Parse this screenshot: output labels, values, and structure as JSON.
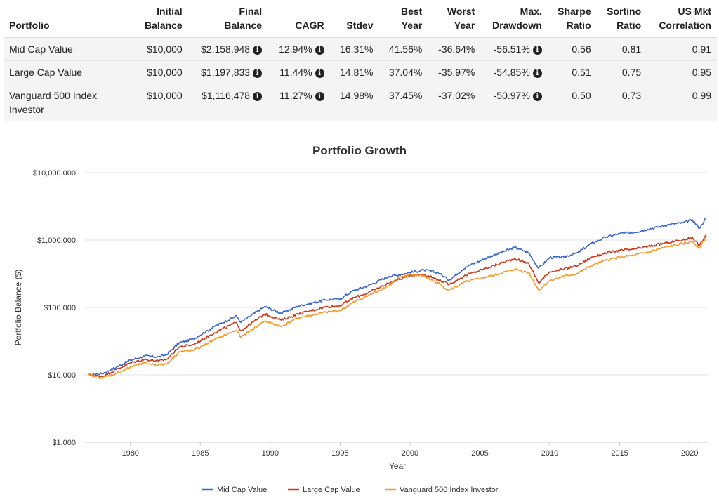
{
  "table": {
    "headers": [
      {
        "line1": "",
        "line2": "Portfolio"
      },
      {
        "line1": "Initial",
        "line2": "Balance"
      },
      {
        "line1": "Final",
        "line2": "Balance"
      },
      {
        "line1": "",
        "line2": "CAGR"
      },
      {
        "line1": "",
        "line2": "Stdev"
      },
      {
        "line1": "Best",
        "line2": "Year"
      },
      {
        "line1": "Worst",
        "line2": "Year"
      },
      {
        "line1": "Max.",
        "line2": "Drawdown"
      },
      {
        "line1": "Sharpe",
        "line2": "Ratio"
      },
      {
        "line1": "Sortino",
        "line2": "Ratio"
      },
      {
        "line1": "US Mkt",
        "line2": "Correlation"
      }
    ],
    "rows": [
      {
        "portfolio": "Mid Cap Value",
        "initial": "$10,000",
        "final": "$2,158,948",
        "cagr": "12.94%",
        "stdev": "16.31%",
        "best": "41.56%",
        "worst": "-36.64%",
        "drawdown": "-56.51%",
        "sharpe": "0.56",
        "sortino": "0.81",
        "corr": "0.91"
      },
      {
        "portfolio": "Large Cap Value",
        "initial": "$10,000",
        "final": "$1,197,833",
        "cagr": "11.44%",
        "stdev": "14.81%",
        "best": "37.04%",
        "worst": "-35.97%",
        "drawdown": "-54.85%",
        "sharpe": "0.51",
        "sortino": "0.75",
        "corr": "0.95"
      },
      {
        "portfolio": "Vanguard 500 Index Investor",
        "initial": "$10,000",
        "final": "$1,116,478",
        "cagr": "11.27%",
        "stdev": "14.98%",
        "best": "37.45%",
        "worst": "-37.02%",
        "drawdown": "-50.97%",
        "sharpe": "0.50",
        "sortino": "0.73",
        "corr": "0.99"
      }
    ],
    "info_icon": "info-circle-icon"
  },
  "chart_data": {
    "type": "line",
    "title": "Portfolio Growth",
    "xlabel": "Year",
    "ylabel": "Portfolio Balance ($)",
    "yscale": "log",
    "ylim": [
      1000,
      10000000
    ],
    "xlim": [
      1976.7,
      2021.4
    ],
    "x_ticks": [
      1980,
      1985,
      1990,
      1995,
      2000,
      2005,
      2010,
      2015,
      2020
    ],
    "y_ticks": [
      {
        "value": 1000,
        "label": "$1,000"
      },
      {
        "value": 10000,
        "label": "$10,000"
      },
      {
        "value": 100000,
        "label": "$100,000"
      },
      {
        "value": 1000000,
        "label": "$1,000,000"
      },
      {
        "value": 10000000,
        "label": "$10,000,000"
      }
    ],
    "legend_position": "bottom",
    "series": [
      {
        "name": "Mid Cap Value",
        "color": "#3a66cc",
        "x": [
          1977.0,
          1978.0,
          1979.0,
          1980.0,
          1981.0,
          1982.0,
          1982.6,
          1983.5,
          1984.5,
          1986.0,
          1987.6,
          1987.9,
          1989.6,
          1990.8,
          1992.0,
          1994.0,
          1995.0,
          1996.0,
          1997.0,
          1998.5,
          1999.0,
          2000.0,
          2001.0,
          2002.0,
          2002.8,
          2004.0,
          2006.0,
          2007.5,
          2008.5,
          2009.2,
          2010.0,
          2011.0,
          2012.0,
          2013.0,
          2014.0,
          2015.0,
          2016.0,
          2017.0,
          2018.5,
          2019.5,
          2020.2,
          2020.7,
          2021.2
        ],
        "values": [
          10000,
          10500,
          13000,
          16500,
          19000,
          18500,
          20000,
          30000,
          34000,
          52000,
          75000,
          60000,
          103000,
          82000,
          105000,
          130000,
          134000,
          180000,
          210000,
          290000,
          300000,
          330000,
          360000,
          330000,
          255000,
          400000,
          600000,
          780000,
          650000,
          380000,
          550000,
          560000,
          650000,
          900000,
          1100000,
          1250000,
          1300000,
          1450000,
          1700000,
          1800000,
          2000000,
          1500000,
          2158948
        ]
      },
      {
        "name": "Large Cap Value",
        "color": "#c8391c",
        "x": [
          1977.0,
          1978.0,
          1979.0,
          1980.0,
          1981.0,
          1982.0,
          1982.6,
          1983.5,
          1984.5,
          1986.0,
          1987.6,
          1987.9,
          1989.6,
          1990.8,
          1992.0,
          1994.0,
          1995.0,
          1996.0,
          1997.0,
          1998.5,
          1999.0,
          2000.0,
          2001.0,
          2002.0,
          2002.8,
          2004.0,
          2006.0,
          2007.5,
          2008.5,
          2009.2,
          2010.0,
          2011.0,
          2012.0,
          2013.0,
          2014.0,
          2015.0,
          2016.0,
          2017.0,
          2018.5,
          2019.5,
          2020.2,
          2020.7,
          2021.2
        ],
        "values": [
          10000,
          9500,
          12000,
          15000,
          17000,
          16000,
          17000,
          26000,
          28000,
          42000,
          60000,
          45000,
          80000,
          65000,
          80000,
          102000,
          106000,
          140000,
          165000,
          230000,
          250000,
          300000,
          310000,
          260000,
          220000,
          300000,
          420000,
          530000,
          450000,
          230000,
          340000,
          370000,
          420000,
          560000,
          640000,
          700000,
          730000,
          800000,
          920000,
          1000000,
          1100000,
          830000,
          1197833
        ]
      },
      {
        "name": "Vanguard 500 Index Investor",
        "color": "#f59a28",
        "x": [
          1977.0,
          1978.0,
          1979.0,
          1980.0,
          1981.0,
          1982.0,
          1982.6,
          1983.5,
          1984.5,
          1986.0,
          1987.6,
          1987.9,
          1989.6,
          1990.8,
          1992.0,
          1994.0,
          1995.0,
          1996.0,
          1997.0,
          1998.5,
          1999.0,
          2000.0,
          2001.0,
          2002.0,
          2002.8,
          2004.0,
          2006.0,
          2007.5,
          2008.5,
          2009.2,
          2010.0,
          2011.0,
          2012.0,
          2013.0,
          2014.0,
          2015.0,
          2016.0,
          2017.0,
          2018.5,
          2019.5,
          2020.2,
          2020.7,
          2021.2
        ],
        "values": [
          10000,
          9000,
          10500,
          13000,
          15000,
          14000,
          14500,
          22000,
          23000,
          33000,
          46000,
          36000,
          63000,
          52000,
          70000,
          85000,
          90000,
          120000,
          150000,
          210000,
          260000,
          310000,
          290000,
          230000,
          180000,
          240000,
          300000,
          370000,
          330000,
          180000,
          250000,
          290000,
          320000,
          420000,
          500000,
          560000,
          590000,
          660000,
          800000,
          880000,
          950000,
          760000,
          1116478
        ]
      }
    ]
  }
}
